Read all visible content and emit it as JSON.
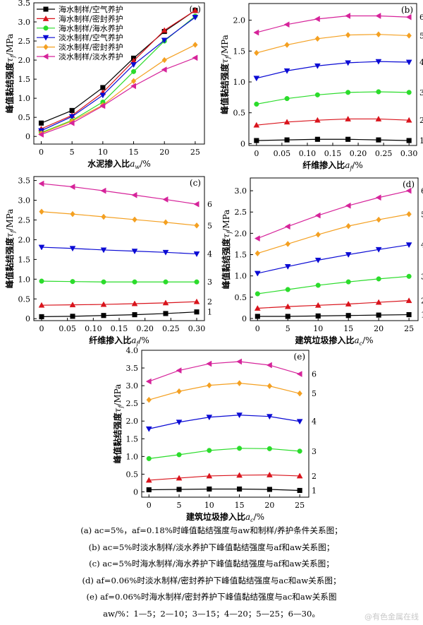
{
  "palette": [
    "#000000",
    "#d9141c",
    "#2bdc2b",
    "#0a0ad4",
    "#f4a021",
    "#d6239a"
  ],
  "chart_data": [
    {
      "id": "a",
      "type": "line",
      "panel_label": "(a)",
      "xlabel_main": "水泥掺入比",
      "xlabel_sym": "a",
      "xlabel_sub": "w",
      "xlabel_unit": "/%",
      "ylabel_main": "峰值黏结强度",
      "ylabel_sym": "τ",
      "ylabel_sub": "f",
      "ylabel_unit": "/MPa",
      "x": [
        0,
        5,
        10,
        15,
        20,
        25
      ],
      "xlim": [
        -1.2,
        26.5
      ],
      "ylim": [
        -0.2,
        3.5
      ],
      "xticks": [
        "0",
        "5",
        "10",
        "15",
        "20",
        "25"
      ],
      "xtick_values": [
        0,
        5,
        10,
        15,
        20,
        25
      ],
      "yticks": [
        "0",
        "0.5",
        "1.0",
        "1.5",
        "2.0",
        "2.5",
        "3.0",
        "3.5"
      ],
      "ytick_values": [
        0,
        0.5,
        1.0,
        1.5,
        2.0,
        2.5,
        3.0,
        3.5
      ],
      "legend_position": "top-left",
      "series": [
        {
          "name": "海水制样/空气养护",
          "marker": "square",
          "color_index": 0,
          "values": [
            0.35,
            0.68,
            1.28,
            2.05,
            2.75,
            3.3
          ]
        },
        {
          "name": "海水制样/密封养护",
          "marker": "triangle-up",
          "color_index": 1,
          "values": [
            0.2,
            0.55,
            1.15,
            1.98,
            2.78,
            3.3
          ]
        },
        {
          "name": "海水制样/海水养护",
          "marker": "circle",
          "color_index": 2,
          "values": [
            0.1,
            0.42,
            0.9,
            1.7,
            2.5,
            3.15
          ]
        },
        {
          "name": "淡水制样/空气养护",
          "marker": "triangle-down",
          "color_index": 3,
          "values": [
            0.15,
            0.52,
            1.08,
            1.88,
            2.52,
            3.12
          ]
        },
        {
          "name": "淡水制样/密封养护",
          "marker": "diamond",
          "color_index": 4,
          "values": [
            0.08,
            0.4,
            0.82,
            1.45,
            2.0,
            2.4
          ]
        },
        {
          "name": "淡水制样/淡水养护",
          "marker": "triangle-left",
          "color_index": 5,
          "values": [
            0.05,
            0.35,
            0.8,
            1.32,
            1.75,
            2.06
          ]
        }
      ]
    },
    {
      "id": "b",
      "type": "line",
      "panel_label": "(b)",
      "xlabel_main": "纤维掺入比",
      "xlabel_sym": "a",
      "xlabel_sub": "f",
      "xlabel_unit": "/%",
      "ylabel_main": "峰值黏结强度",
      "ylabel_sym": "τ",
      "ylabel_sub": "f",
      "ylabel_unit": "/MPa",
      "x": [
        0,
        0.06,
        0.12,
        0.18,
        0.24,
        0.3
      ],
      "xlim": [
        -0.015,
        0.315
      ],
      "ylim": [
        -0.03,
        2.27
      ],
      "xticks": [
        "0",
        "0.05",
        "0.10",
        "0.15",
        "0.20",
        "0.25",
        "0.30"
      ],
      "xtick_values": [
        0,
        0.05,
        0.1,
        0.15,
        0.2,
        0.25,
        0.3
      ],
      "yticks": [
        "0",
        "0.5",
        "1.0",
        "1.5",
        "2.0"
      ],
      "ytick_values": [
        0,
        0.5,
        1.0,
        1.5,
        2.0
      ],
      "series": [
        {
          "name": "1",
          "marker": "square",
          "color_index": 0,
          "values": [
            0.05,
            0.06,
            0.07,
            0.07,
            0.06,
            0.05
          ]
        },
        {
          "name": "2",
          "marker": "triangle-up",
          "color_index": 1,
          "values": [
            0.3,
            0.35,
            0.38,
            0.4,
            0.4,
            0.38
          ]
        },
        {
          "name": "3",
          "marker": "circle",
          "color_index": 2,
          "values": [
            0.64,
            0.73,
            0.79,
            0.83,
            0.84,
            0.83
          ]
        },
        {
          "name": "4",
          "marker": "triangle-down",
          "color_index": 3,
          "values": [
            1.06,
            1.18,
            1.26,
            1.31,
            1.33,
            1.32
          ]
        },
        {
          "name": "5",
          "marker": "diamond",
          "color_index": 4,
          "values": [
            1.47,
            1.6,
            1.7,
            1.76,
            1.77,
            1.75
          ]
        },
        {
          "name": "6",
          "marker": "triangle-left",
          "color_index": 5,
          "values": [
            1.8,
            1.93,
            2.02,
            2.07,
            2.07,
            2.05
          ]
        }
      ]
    },
    {
      "id": "c",
      "type": "line",
      "panel_label": "(c)",
      "xlabel_main": "纤维掺入比",
      "xlabel_sym": "a",
      "xlabel_sub": "f",
      "xlabel_unit": "/%",
      "ylabel_main": "峰值黏结强度",
      "ylabel_sym": "τ",
      "ylabel_sub": "f",
      "ylabel_unit": "/MPa",
      "x": [
        0,
        0.06,
        0.12,
        0.18,
        0.24,
        0.3
      ],
      "xlim": [
        -0.015,
        0.315
      ],
      "ylim": [
        -0.05,
        3.6
      ],
      "xticks": [
        "0",
        "0.05",
        "0.10",
        "0.15",
        "0.20",
        "0.25",
        "0.30"
      ],
      "xtick_values": [
        0,
        0.05,
        0.1,
        0.15,
        0.2,
        0.25,
        0.3
      ],
      "yticks": [
        "0",
        "0.5",
        "1.0",
        "1.5",
        "2.0",
        "2.5",
        "3.0",
        "3.5"
      ],
      "ytick_values": [
        0,
        0.5,
        1.0,
        1.5,
        2.0,
        2.5,
        3.0,
        3.5
      ],
      "series": [
        {
          "name": "1",
          "marker": "square",
          "color_index": 0,
          "values": [
            0.05,
            0.06,
            0.08,
            0.1,
            0.13,
            0.17
          ]
        },
        {
          "name": "2",
          "marker": "triangle-up",
          "color_index": 1,
          "values": [
            0.34,
            0.35,
            0.36,
            0.38,
            0.4,
            0.43
          ]
        },
        {
          "name": "3",
          "marker": "circle",
          "color_index": 2,
          "values": [
            0.95,
            0.94,
            0.93,
            0.93,
            0.93,
            0.93
          ]
        },
        {
          "name": "4",
          "marker": "triangle-down",
          "color_index": 3,
          "values": [
            1.81,
            1.78,
            1.74,
            1.71,
            1.68,
            1.64
          ]
        },
        {
          "name": "5",
          "marker": "diamond",
          "color_index": 4,
          "values": [
            2.71,
            2.65,
            2.58,
            2.51,
            2.44,
            2.36
          ]
        },
        {
          "name": "6",
          "marker": "triangle-left",
          "color_index": 5,
          "values": [
            3.42,
            3.34,
            3.24,
            3.13,
            3.02,
            2.9
          ]
        }
      ]
    },
    {
      "id": "d",
      "type": "line",
      "panel_label": "(d)",
      "xlabel_main": "建筑垃圾掺入比",
      "xlabel_sym": "a",
      "xlabel_sub": "c",
      "xlabel_unit": "/%",
      "ylabel_main": "峰值黏结强度",
      "ylabel_sym": "τ",
      "ylabel_sub": "f",
      "ylabel_unit": "/MPa",
      "x": [
        0,
        5,
        10,
        15,
        20,
        25
      ],
      "xlim": [
        -1.2,
        26.5
      ],
      "ylim": [
        -0.05,
        3.3
      ],
      "xticks": [
        "0",
        "5",
        "10",
        "15",
        "20",
        "25"
      ],
      "xtick_values": [
        0,
        5,
        10,
        15,
        20,
        25
      ],
      "yticks": [
        "0",
        "0.5",
        "1.0",
        "1.5",
        "2.0",
        "2.5",
        "3.0"
      ],
      "ytick_values": [
        0,
        0.5,
        1.0,
        1.5,
        2.0,
        2.5,
        3.0
      ],
      "series": [
        {
          "name": "1",
          "marker": "square",
          "color_index": 0,
          "values": [
            0.05,
            0.05,
            0.06,
            0.07,
            0.08,
            0.09
          ]
        },
        {
          "name": "2",
          "marker": "triangle-up",
          "color_index": 1,
          "values": [
            0.24,
            0.28,
            0.31,
            0.34,
            0.38,
            0.42
          ]
        },
        {
          "name": "3",
          "marker": "circle",
          "color_index": 2,
          "values": [
            0.58,
            0.68,
            0.78,
            0.86,
            0.93,
            0.99
          ]
        },
        {
          "name": "4",
          "marker": "triangle-down",
          "color_index": 3,
          "values": [
            1.06,
            1.22,
            1.37,
            1.5,
            1.62,
            1.73
          ]
        },
        {
          "name": "5",
          "marker": "diamond",
          "color_index": 4,
          "values": [
            1.53,
            1.75,
            1.97,
            2.17,
            2.32,
            2.45
          ]
        },
        {
          "name": "6",
          "marker": "triangle-left",
          "color_index": 5,
          "values": [
            1.88,
            2.16,
            2.42,
            2.65,
            2.84,
            3.0
          ]
        }
      ]
    },
    {
      "id": "e",
      "type": "line",
      "panel_label": "(e)",
      "xlabel_main": "建筑垃圾掺入比",
      "xlabel_sym": "a",
      "xlabel_sub": "c",
      "xlabel_unit": "/%",
      "ylabel_main": "峰值黏结强度",
      "ylabel_sym": "τ",
      "ylabel_sub": "f",
      "ylabel_unit": "/MPa",
      "x": [
        0,
        5,
        10,
        15,
        20,
        25
      ],
      "xlim": [
        -1.2,
        26.5
      ],
      "ylim": [
        -0.15,
        4.0
      ],
      "xticks": [
        "0",
        "5",
        "10",
        "15",
        "20",
        "25"
      ],
      "xtick_values": [
        0,
        5,
        10,
        15,
        20,
        25
      ],
      "yticks": [
        "0",
        "0.5",
        "1.0",
        "1.5",
        "2.0",
        "2.5",
        "3.0",
        "3.5",
        "4.0"
      ],
      "ytick_values": [
        0,
        0.5,
        1.0,
        1.5,
        2.0,
        2.5,
        3.0,
        3.5,
        4.0
      ],
      "series": [
        {
          "name": "1",
          "marker": "square",
          "color_index": 0,
          "values": [
            0.06,
            0.07,
            0.08,
            0.08,
            0.07,
            0.04
          ]
        },
        {
          "name": "2",
          "marker": "triangle-up",
          "color_index": 1,
          "values": [
            0.33,
            0.39,
            0.45,
            0.47,
            0.48,
            0.45
          ]
        },
        {
          "name": "3",
          "marker": "circle",
          "color_index": 2,
          "values": [
            0.94,
            1.05,
            1.17,
            1.23,
            1.22,
            1.15
          ]
        },
        {
          "name": "4",
          "marker": "triangle-down",
          "color_index": 3,
          "values": [
            1.78,
            1.97,
            2.11,
            2.17,
            2.13,
            1.99
          ]
        },
        {
          "name": "5",
          "marker": "diamond",
          "color_index": 4,
          "values": [
            2.6,
            2.84,
            3.01,
            3.07,
            2.99,
            2.78
          ]
        },
        {
          "name": "6",
          "marker": "triangle-left",
          "color_index": 5,
          "values": [
            3.12,
            3.43,
            3.62,
            3.68,
            3.58,
            3.33
          ]
        }
      ]
    }
  ],
  "caption": {
    "line_a": "(a) ac=5%，af=0.18%时峰值黏结强度与aw和制样/养护条件关系图；",
    "line_b": "(b) ac=5%时淡水制样/淡水养护下峰值黏结强度与af和aw关系图；",
    "line_c": "(c) ac=5%时海水制样/海水养护下峰值黏结强度与af和aw关系图；",
    "line_d": "(d) af=0.06%时淡水制样/密封养护下峰值黏结强度与ac和aw关系图；",
    "line_e": "(e) af=0.06%时海水制样/密封养护下峰值黏结强度与ac和aw关系图",
    "line_f": "aw/%：1—5；2—10；3—15；4—20；5—25；6—30。"
  },
  "watermark": "@有色金属在线"
}
